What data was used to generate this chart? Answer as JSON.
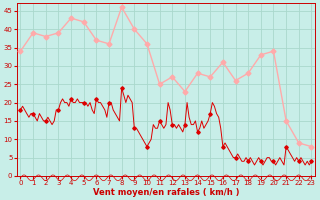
{
  "bg_color": "#c8eee8",
  "grid_color": "#aad8cc",
  "line_color_avg": "#dd0000",
  "line_color_gust": "#ffaaaa",
  "xlabel": "Vent moyen/en rafales ( km/h )",
  "xlabel_color": "#cc0000",
  "tick_color": "#cc0000",
  "ylim": [
    0,
    47
  ],
  "yticks": [
    0,
    5,
    10,
    15,
    20,
    25,
    30,
    35,
    40,
    45
  ],
  "xlim": [
    0,
    23
  ],
  "xticks": [
    0,
    1,
    2,
    3,
    4,
    5,
    6,
    7,
    8,
    9,
    10,
    11,
    12,
    13,
    14,
    15,
    16,
    17,
    18,
    19,
    20,
    21,
    22,
    23
  ],
  "gust_x": [
    0,
    1,
    2,
    3,
    4,
    5,
    6,
    7,
    8,
    9,
    10,
    11,
    12,
    13,
    14,
    15,
    16,
    17,
    18,
    19,
    20,
    21,
    22,
    23
  ],
  "gust_y": [
    34,
    39,
    38,
    39,
    43,
    42,
    37,
    36,
    46,
    40,
    36,
    25,
    27,
    23,
    28,
    27,
    31,
    26,
    28,
    33,
    34,
    15,
    9,
    8
  ],
  "avg_x": [
    0.0,
    0.17,
    0.33,
    0.5,
    0.67,
    0.83,
    1.0,
    1.17,
    1.33,
    1.5,
    1.67,
    1.83,
    2.0,
    2.17,
    2.33,
    2.5,
    2.67,
    2.83,
    3.0,
    3.17,
    3.33,
    3.5,
    3.67,
    3.83,
    4.0,
    4.17,
    4.33,
    4.5,
    4.67,
    4.83,
    5.0,
    5.17,
    5.33,
    5.5,
    5.67,
    5.83,
    6.0,
    6.17,
    6.33,
    6.5,
    6.67,
    6.83,
    7.0,
    7.17,
    7.33,
    7.5,
    7.67,
    7.83,
    8.0,
    8.17,
    8.33,
    8.5,
    8.67,
    8.83,
    9.0,
    9.17,
    9.33,
    9.5,
    9.67,
    9.83,
    10.0,
    10.17,
    10.33,
    10.5,
    10.67,
    10.83,
    11.0,
    11.17,
    11.33,
    11.5,
    11.67,
    11.83,
    12.0,
    12.17,
    12.33,
    12.5,
    12.67,
    12.83,
    13.0,
    13.17,
    13.33,
    13.5,
    13.67,
    13.83,
    14.0,
    14.17,
    14.33,
    14.5,
    14.67,
    14.83,
    15.0,
    15.17,
    15.33,
    15.5,
    15.67,
    15.83,
    16.0,
    16.17,
    16.33,
    16.5,
    16.67,
    16.83,
    17.0,
    17.17,
    17.33,
    17.5,
    17.67,
    17.83,
    18.0,
    18.17,
    18.33,
    18.5,
    18.67,
    18.83,
    19.0,
    19.17,
    19.33,
    19.5,
    19.67,
    19.83,
    20.0,
    20.17,
    20.33,
    20.5,
    20.67,
    20.83,
    21.0,
    21.17,
    21.33,
    21.5,
    21.67,
    21.83,
    22.0,
    22.17,
    22.33,
    22.5,
    22.67,
    22.83,
    23.0
  ],
  "avg_y": [
    18,
    19,
    18,
    17,
    16,
    17,
    17,
    16,
    15,
    17,
    16,
    15,
    15,
    16,
    15,
    14,
    15,
    18,
    18,
    20,
    21,
    20,
    20,
    19,
    21,
    20,
    20,
    21,
    20,
    20,
    20,
    20,
    19,
    20,
    18,
    17,
    21,
    20,
    20,
    19,
    18,
    16,
    20,
    20,
    18,
    17,
    16,
    15,
    24,
    22,
    20,
    22,
    21,
    20,
    13,
    13,
    12,
    11,
    10,
    9,
    8,
    9,
    10,
    14,
    13,
    13,
    15,
    14,
    13,
    14,
    20,
    18,
    14,
    14,
    13,
    14,
    13,
    12,
    14,
    20,
    16,
    14,
    14,
    15,
    12,
    13,
    15,
    13,
    14,
    15,
    17,
    20,
    19,
    17,
    16,
    13,
    8,
    9,
    8,
    7,
    6,
    5,
    5,
    6,
    5,
    4,
    4,
    5,
    4,
    5,
    4,
    3,
    4,
    5,
    4,
    3,
    4,
    5,
    5,
    4,
    4,
    3,
    4,
    5,
    4,
    3,
    8,
    7,
    6,
    5,
    4,
    5,
    4,
    5,
    4,
    3,
    4,
    3,
    4
  ]
}
